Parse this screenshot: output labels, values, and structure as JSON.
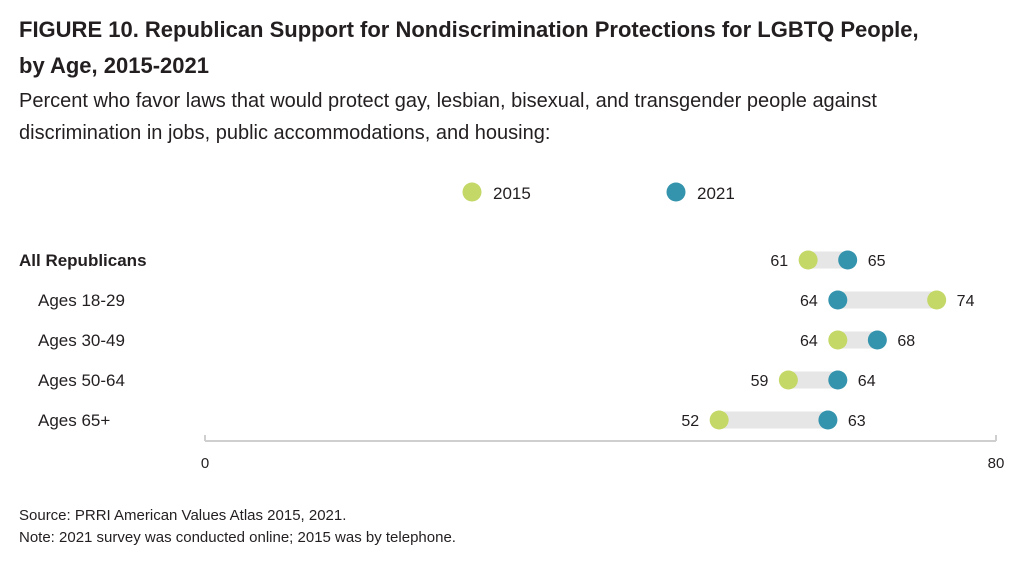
{
  "figure": {
    "title_line1": "FIGURE 10.  Republican Support for Nondiscrimination Protections for LGBTQ People,",
    "title_line2": "by Age, 2015-2021",
    "subtitle_line1": "Percent who favor laws that would protect gay, lesbian, bisexual, and transgender people against",
    "subtitle_line2": "discrimination in jobs, public accommodations, and housing:",
    "source": "Source: PRRI American Values Atlas 2015, 2021.",
    "note": "Note: 2021 survey was conducted online; 2015 was by telephone."
  },
  "chart_data": {
    "type": "dumbbell",
    "title": "",
    "categories": [
      "All Republicans",
      "Ages 18-29",
      "Ages 30-49",
      "Ages 50-64",
      "Ages 65+"
    ],
    "category_bold": [
      true,
      false,
      false,
      false,
      false
    ],
    "series": [
      {
        "name": "2015",
        "color": "#c3d867",
        "values": [
          61,
          74,
          64,
          59,
          52
        ]
      },
      {
        "name": "2021",
        "color": "#3594ad",
        "values": [
          65,
          64,
          68,
          64,
          63
        ]
      }
    ],
    "xlim": [
      0,
      80
    ],
    "x_tick_labels": [
      "0",
      "80"
    ],
    "connector_color": "#e6e6e6",
    "axis_color": "#cfcfcf",
    "legend_position": "top-center",
    "grid": false
  }
}
